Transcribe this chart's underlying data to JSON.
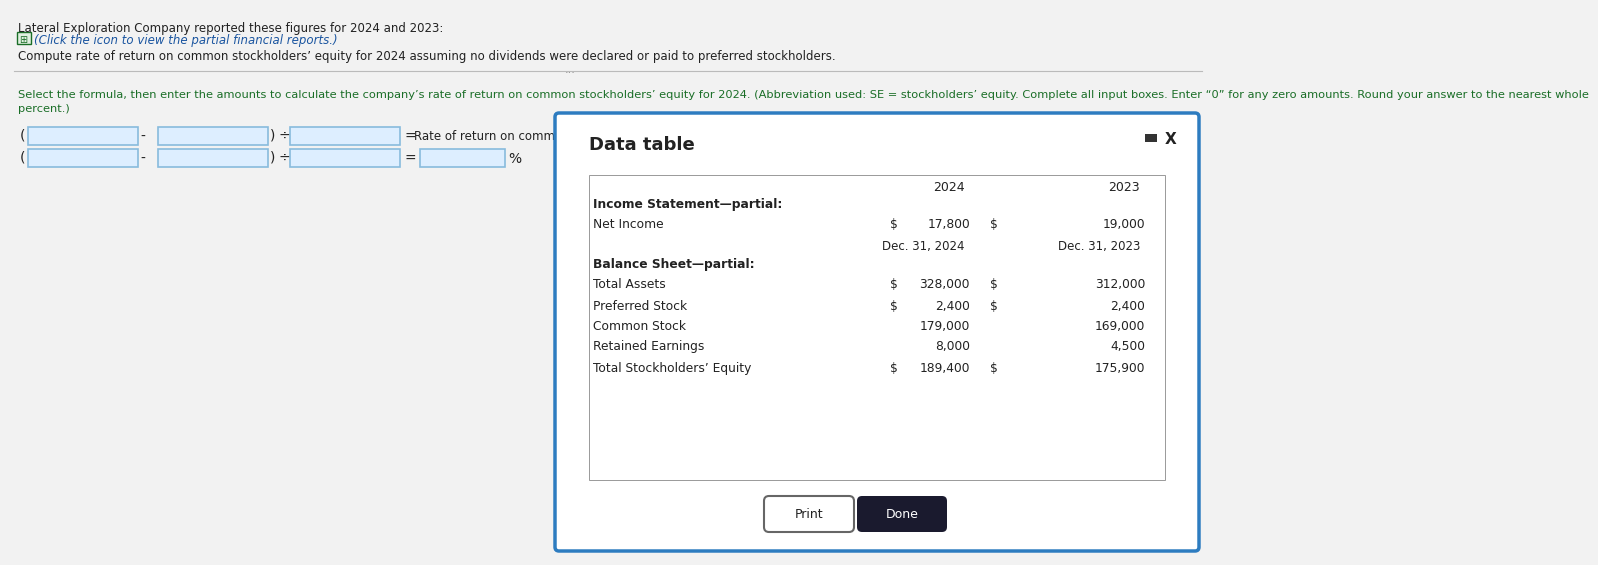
{
  "title_text": "Lateral Exploration Company reported these figures for 2024 and 2023:",
  "icon_link_text": "(Click the icon to view the partial financial reports.)",
  "compute_text": "Compute rate of return on common stockholders’ equity for 2024 assuming no dividends were declared or paid to preferred stockholders.",
  "instruction_line1": "Select the formula, then enter the amounts to calculate the company’s rate of return on common stockholders’ equity for 2024. (Abbreviation used: SE = stockholders’ equity. Complete all input boxes. Enter “0” for any zero amounts. Round your answer to the nearest whole",
  "instruction_line2": "percent.)",
  "formula_label_row1": "Rate of return on common SE",
  "percent_label": "%",
  "modal_title": "Data table",
  "col_2024": "2024",
  "col_2023": "2023",
  "income_header": "Income Statement—partial:",
  "net_income_label": "Net Income",
  "net_income_2024": "17,800",
  "net_income_2023": "19,000",
  "dec31_2024": "Dec. 31, 2024",
  "dec31_2023": "Dec. 31, 2023",
  "balance_header": "Balance Sheet—partial:",
  "total_assets_label": "Total Assets",
  "total_assets_2024": "328,000",
  "total_assets_2023": "312,000",
  "pref_stock_label": "Preferred Stock",
  "pref_stock_2024": "2,400",
  "pref_stock_2023": "2,400",
  "common_stock_label": "Common Stock",
  "common_stock_2024": "179,000",
  "common_stock_2023": "169,000",
  "ret_earn_label": "Retained Earnings",
  "ret_earn_2024": "8,000",
  "ret_earn_2023": "4,500",
  "total_se_label": "Total Stockholders’ Equity",
  "total_se_2024": "189,400",
  "total_se_2023": "175,900",
  "print_btn": "Print",
  "done_btn": "Done",
  "bg_color": "#f2f2f2",
  "modal_bg": "#ffffff",
  "modal_border": "#2d7cc0",
  "input_box_color": "#ddeeff",
  "input_border": "#88bbdd",
  "icon_color": "#1a6e27",
  "link_color": "#1a55a0",
  "green_text": "#1a6e27",
  "text_color": "#222222",
  "done_btn_bg": "#1a1a2e",
  "done_btn_text": "#ffffff",
  "separator_color": "#bbbbbb"
}
